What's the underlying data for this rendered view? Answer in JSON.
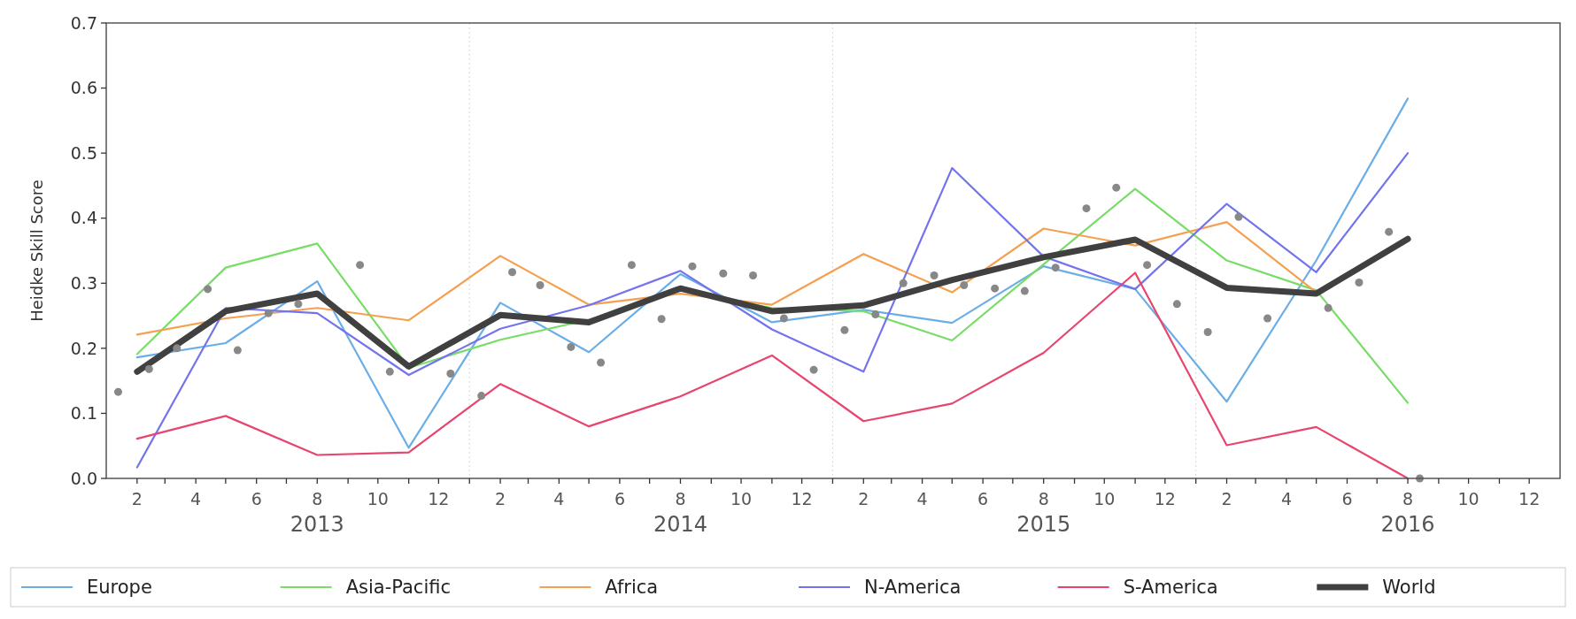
{
  "chart_data": {
    "type": "line",
    "ylabel": "Heidke Skill Score",
    "x": [
      "2013-02-01",
      "2013-05-01",
      "2013-08-01",
      "2013-11-01",
      "2014-02-01",
      "2014-05-01",
      "2014-08-01",
      "2014-11-01",
      "2015-02-01",
      "2015-05-01",
      "2015-08-01",
      "2015-11-01",
      "2016-02-01",
      "2016-05-01",
      "2016-08-01"
    ],
    "series": [
      {
        "name": "Europe",
        "color": "#6aaee8",
        "values": [
          0.186,
          0.208,
          0.303,
          0.047,
          0.27,
          0.194,
          0.314,
          0.24,
          0.259,
          0.239,
          0.326,
          0.291,
          0.118,
          0.335,
          0.584
        ]
      },
      {
        "name": "Asia-Pacific",
        "color": "#77dd66",
        "values": [
          0.191,
          0.324,
          0.361,
          0.17,
          0.213,
          0.244,
          0.289,
          0.262,
          0.257,
          0.212,
          0.329,
          0.445,
          0.335,
          0.289,
          0.116
        ]
      },
      {
        "name": "Africa",
        "color": "#f5a050",
        "values": [
          0.221,
          0.246,
          0.262,
          0.243,
          0.342,
          0.267,
          0.284,
          0.267,
          0.345,
          0.286,
          0.384,
          0.358,
          0.394,
          0.286,
          null
        ]
      },
      {
        "name": "N-America",
        "color": "#7373ee",
        "values": [
          0.017,
          0.262,
          0.254,
          0.159,
          0.23,
          0.266,
          0.319,
          0.229,
          0.164,
          0.477,
          0.341,
          0.291,
          0.422,
          0.317,
          0.5
        ]
      },
      {
        "name": "S-America",
        "color": "#e8456e",
        "values": [
          0.061,
          0.096,
          0.036,
          0.04,
          0.145,
          0.08,
          0.126,
          0.189,
          0.088,
          0.115,
          0.193,
          0.316,
          0.051,
          0.079,
          0.0
        ]
      },
      {
        "name": "World",
        "color": "#404040",
        "values": [
          0.164,
          0.257,
          0.284,
          0.172,
          0.251,
          0.24,
          0.292,
          0.257,
          0.266,
          0.305,
          0.34,
          0.367,
          0.293,
          0.284,
          0.368
        ]
      },
      {
        "type": "scatter",
        "color": "#888888",
        "marker": "circle",
        "x": [
          "2013-01-13",
          "2013-02-13",
          "2013-03-13",
          "2013-04-13",
          "2013-05-13",
          "2013-06-13",
          "2013-07-13",
          "2013-09-13",
          "2013-10-13",
          "2013-12-13",
          "2014-01-13",
          "2014-02-13",
          "2014-03-13",
          "2014-04-13",
          "2014-05-13",
          "2014-06-13",
          "2014-07-13",
          "2014-08-13",
          "2014-09-13",
          "2014-10-13",
          "2014-11-13",
          "2014-12-13",
          "2015-01-13",
          "2015-02-13",
          "2015-03-13",
          "2015-04-13",
          "2015-05-13",
          "2015-06-13",
          "2015-07-13",
          "2015-08-13",
          "2015-09-13",
          "2015-10-13",
          "2015-11-13",
          "2015-12-13",
          "2016-01-13",
          "2016-02-13",
          "2016-03-13",
          "2016-05-13",
          "2016-06-13",
          "2016-07-13",
          "2016-08-13"
        ],
        "values": [
          0.133,
          0.168,
          0.2,
          0.291,
          0.197,
          0.254,
          0.268,
          0.328,
          0.164,
          0.161,
          0.127,
          0.317,
          0.297,
          0.202,
          0.178,
          0.328,
          0.245,
          0.326,
          0.315,
          0.312,
          0.246,
          0.167,
          0.228,
          0.252,
          0.3,
          0.312,
          0.297,
          0.292,
          0.288,
          0.324,
          0.415,
          0.447,
          0.328,
          0.268,
          0.225,
          0.402,
          0.246,
          0.262,
          0.301,
          0.379,
          0.0
        ]
      }
    ],
    "xlim": [
      "2013-01-01",
      "2017-01-01"
    ],
    "xticks": [
      {
        "value": "2013-02-01",
        "label": "2"
      },
      {
        "value": "2013-03-01",
        "label": null
      },
      {
        "value": "2013-04-01",
        "label": "4"
      },
      {
        "value": "2013-05-01",
        "label": null
      },
      {
        "value": "2013-06-01",
        "label": "6"
      },
      {
        "value": "2013-07-01",
        "label": null
      },
      {
        "value": "2013-08-01",
        "label": "8\n2013"
      },
      {
        "value": "2013-09-01",
        "label": null
      },
      {
        "value": "2013-10-01",
        "label": "10"
      },
      {
        "value": "2013-11-01",
        "label": null
      },
      {
        "value": "2013-12-01",
        "label": "12"
      },
      {
        "value": "2014-01-01",
        "label": null
      },
      {
        "value": "2014-02-01",
        "label": "2"
      },
      {
        "value": "2014-03-01",
        "label": null
      },
      {
        "value": "2014-04-01",
        "label": "4"
      },
      {
        "value": "2014-05-01",
        "label": null
      },
      {
        "value": "2014-06-01",
        "label": "6"
      },
      {
        "value": "2014-07-01",
        "label": null
      },
      {
        "value": "2014-08-01",
        "label": "8\n2014"
      },
      {
        "value": "2014-09-01",
        "label": null
      },
      {
        "value": "2014-10-01",
        "label": "10"
      },
      {
        "value": "2014-11-01",
        "label": null
      },
      {
        "value": "2014-12-01",
        "label": "12"
      },
      {
        "value": "2015-01-01",
        "label": null
      },
      {
        "value": "2015-02-01",
        "label": "2"
      },
      {
        "value": "2015-03-01",
        "label": null
      },
      {
        "value": "2015-04-01",
        "label": "4"
      },
      {
        "value": "2015-05-01",
        "label": null
      },
      {
        "value": "2015-06-01",
        "label": "6"
      },
      {
        "value": "2015-07-01",
        "label": null
      },
      {
        "value": "2015-08-01",
        "label": "8\n2015"
      },
      {
        "value": "2015-09-01",
        "label": null
      },
      {
        "value": "2015-10-01",
        "label": "10"
      },
      {
        "value": "2015-11-01",
        "label": null
      },
      {
        "value": "2015-12-01",
        "label": "12"
      },
      {
        "value": "2016-01-01",
        "label": null
      },
      {
        "value": "2016-02-01",
        "label": "2"
      },
      {
        "value": "2016-03-01",
        "label": null
      },
      {
        "value": "2016-04-01",
        "label": "4"
      },
      {
        "value": "2016-05-01",
        "label": null
      },
      {
        "value": "2016-06-01",
        "label": "6"
      },
      {
        "value": "2016-07-01",
        "label": null
      },
      {
        "value": "2016-08-01",
        "label": "8\n2016"
      },
      {
        "value": "2016-09-01",
        "label": null
      },
      {
        "value": "2016-10-01",
        "label": "10"
      },
      {
        "value": "2016-11-01",
        "label": null
      },
      {
        "value": "2016-12-01",
        "label": "12"
      }
    ],
    "ylim": [
      0,
      0.7
    ],
    "yticks": [
      {
        "value": 0,
        "label": "0.0"
      },
      0.1,
      0.2,
      0.3,
      0.4,
      0.5,
      0.6,
      0.7
    ],
    "ref_lines": [
      {
        "axis": "x",
        "value": "2014-01-01",
        "color": "#dddddd",
        "line_style": "dotted"
      },
      {
        "axis": "x",
        "value": "2015-01-01",
        "color": "#dddddd",
        "line_style": "dotted"
      },
      {
        "axis": "x",
        "value": "2016-01-01",
        "color": "#dddddd",
        "line_style": "dotted"
      }
    ],
    "legend": "bottom",
    "line_style": "solid",
    "marker": "none"
  }
}
